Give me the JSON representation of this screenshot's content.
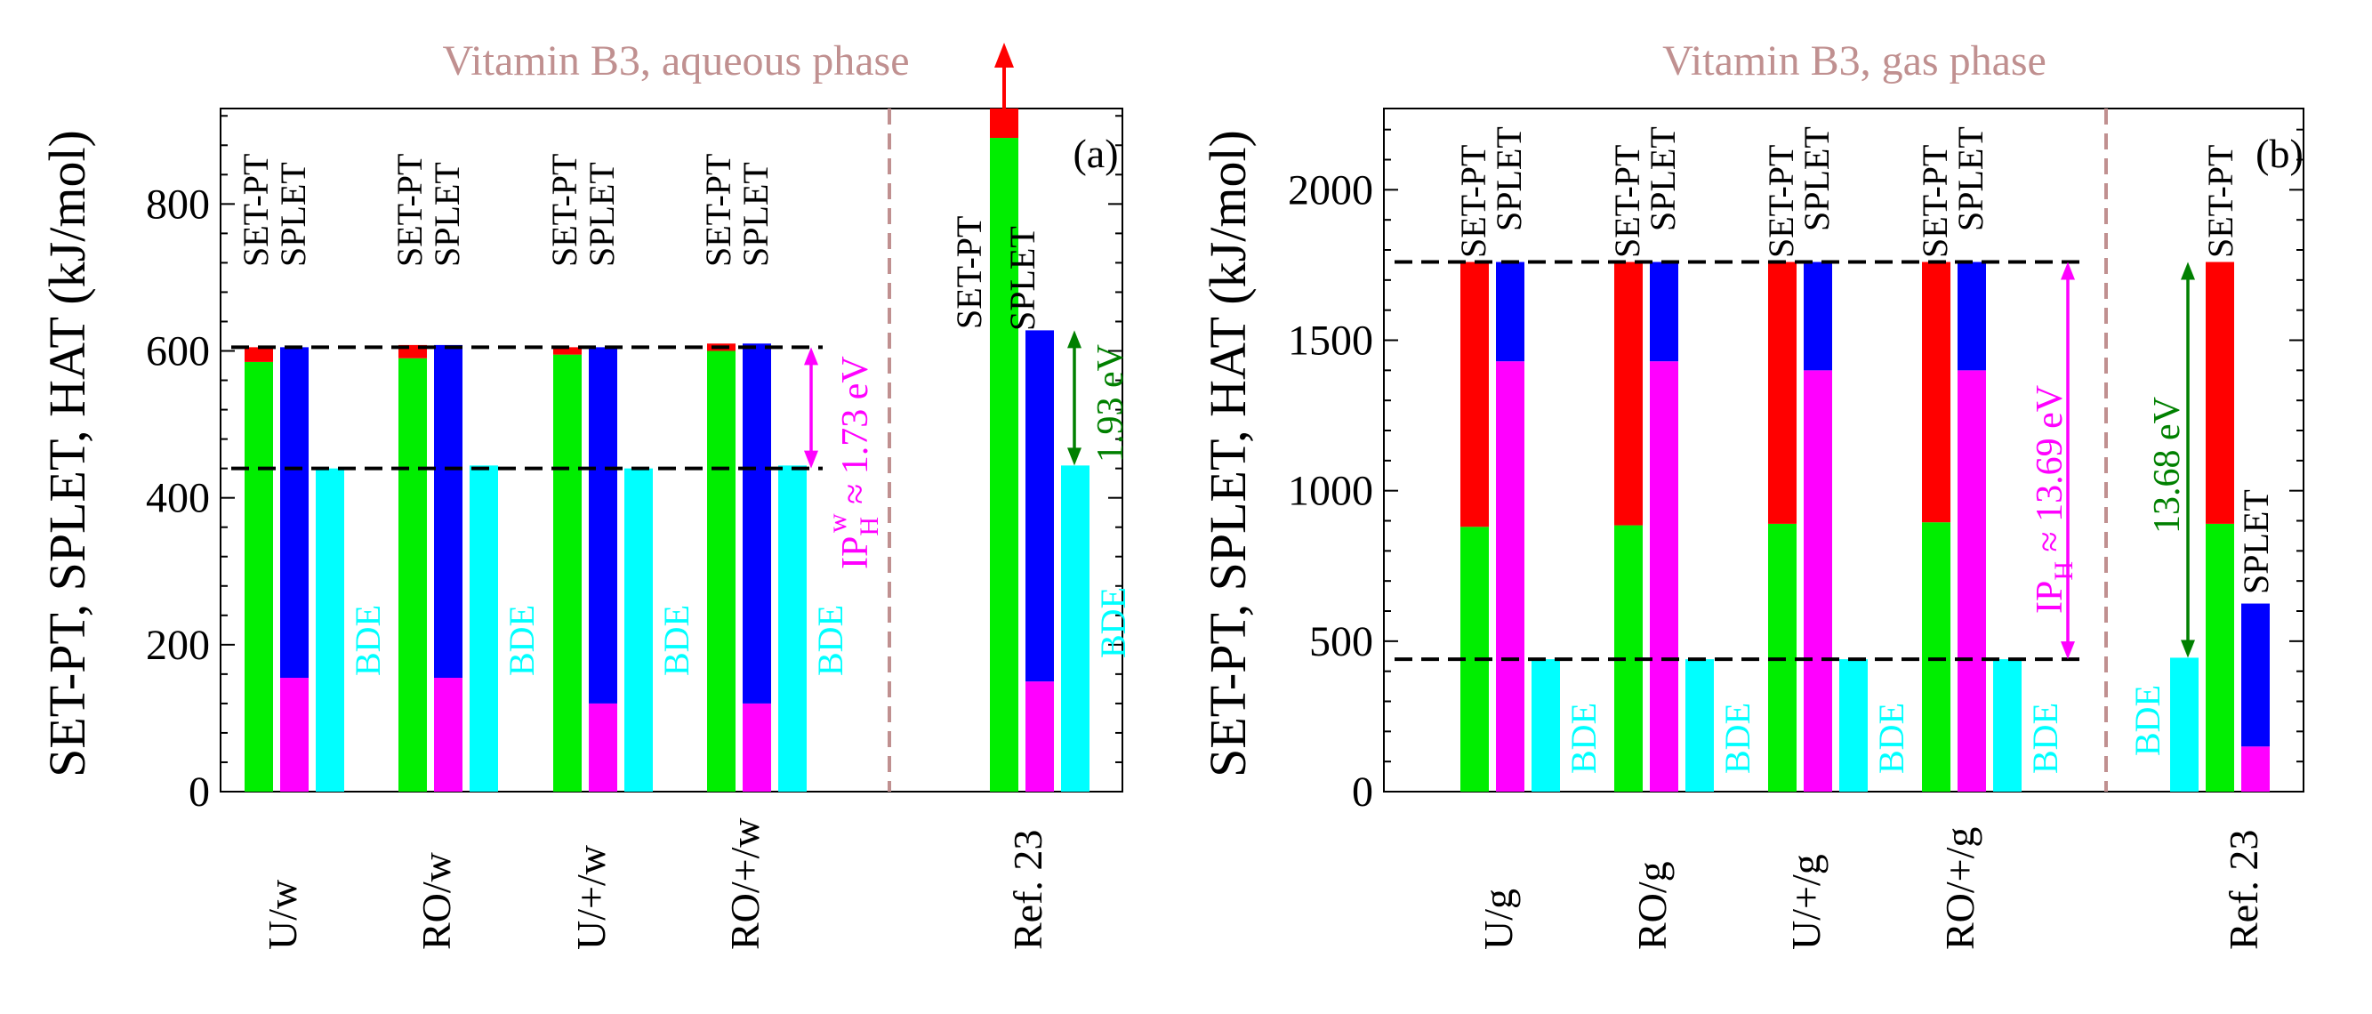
{
  "chart_data": [
    {
      "type": "bar",
      "panel_label": "(a)",
      "title": "Vitamin B3, aqueous phase",
      "ylabel": "SET-PT, SPLET, HAT (kJ/mol)",
      "ylim": [
        0,
        930
      ],
      "yticks": [
        0,
        200,
        400,
        600,
        800
      ],
      "categories": [
        "U/w",
        "RO/w",
        "U/+/w",
        "RO/+/w",
        "Ref. 23"
      ],
      "bar_labels": {
        "setpt": "SET-PT",
        "splet": "SPLET",
        "bde": "BDE"
      },
      "groups": [
        {
          "setpt": [
            585,
            605
          ],
          "splet": [
            155,
            605
          ],
          "bde": 440
        },
        {
          "setpt": [
            590,
            608
          ],
          "splet": [
            155,
            608
          ],
          "bde": 444
        },
        {
          "setpt": [
            595,
            605
          ],
          "splet": [
            120,
            605
          ],
          "bde": 440
        },
        {
          "setpt": [
            600,
            610
          ],
          "splet": [
            120,
            610
          ],
          "bde": 444
        },
        {
          "setpt": [
            890,
            930
          ],
          "splet": [
            150,
            628
          ],
          "bde": 444
        }
      ],
      "hlines": [
        605,
        440
      ],
      "annotations": [
        {
          "text": "IP",
          "sub": "H",
          "sup": "w",
          "rest": " ≈ 1.73 eV",
          "color": "#ff00ff",
          "from": 605,
          "to": 440
        },
        {
          "text": "1.93 eV",
          "color": "#008000",
          "from": 628,
          "to": 444
        }
      ],
      "overflow_arrow": "red arrow: SET-PT total of Ref. 23 exceeds axis range"
    },
    {
      "type": "bar",
      "panel_label": "(b)",
      "title": "Vitamin B3, gas phase",
      "ylabel": "SET-PT, SPLET, HAT (kJ/mol)",
      "ylim": [
        0,
        2270
      ],
      "yticks": [
        0,
        500,
        1000,
        1500,
        2000
      ],
      "categories": [
        "U/g",
        "RO/g",
        "U/+/g",
        "RO/+/g",
        "Ref. 23"
      ],
      "bar_labels": {
        "setpt": "SET-PT",
        "splet": "SPLET",
        "bde": "BDE"
      },
      "groups": [
        {
          "setpt": [
            880,
            1760
          ],
          "splet": [
            1430,
            1760
          ],
          "bde": 440
        },
        {
          "setpt": [
            885,
            1760
          ],
          "splet": [
            1430,
            1760
          ],
          "bde": 440
        },
        {
          "setpt": [
            890,
            1760
          ],
          "splet": [
            1400,
            1760
          ],
          "bde": 440
        },
        {
          "setpt": [
            895,
            1760
          ],
          "splet": [
            1400,
            1760
          ],
          "bde": 440
        },
        {
          "setpt": [
            890,
            1760
          ],
          "splet": [
            150,
            625
          ],
          "bde": 445
        }
      ],
      "hlines": [
        1760,
        440
      ],
      "annotations": [
        {
          "text": "IP",
          "sub": "H",
          "sup": "",
          "rest": " ≈ 13.69 eV",
          "color": "#ff00ff",
          "from": 1760,
          "to": 440
        },
        {
          "text": "13.68 eV",
          "color": "#008000",
          "from": 1760,
          "to": 445
        }
      ]
    }
  ],
  "colors": {
    "setpt_bottom": "#00ee00",
    "setpt_top": "#ff0000",
    "splet_bottom": "#ff00ff",
    "splet_top": "#0000ff",
    "bde": "#00ffff",
    "divider": "#c09090",
    "title": "#c09090"
  }
}
